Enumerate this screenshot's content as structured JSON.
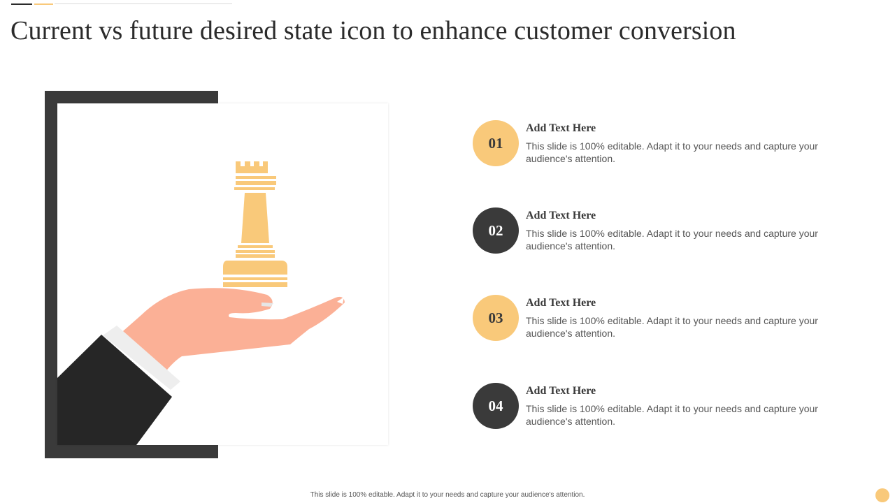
{
  "title": "Current vs future desired state icon to enhance customer conversion",
  "items": [
    {
      "number": "01",
      "heading": "Add Text Here",
      "text": "This slide is 100% editable. Adapt it to your needs and capture your audience's attention."
    },
    {
      "number": "02",
      "heading": "Add Text Here",
      "text": "This slide is 100% editable. Adapt it to your needs and capture your audience's attention."
    },
    {
      "number": "03",
      "heading": "Add Text Here",
      "text": "This slide is 100% editable. Adapt it to your needs and capture your audience's attention."
    },
    {
      "number": "04",
      "heading": "Add Text Here",
      "text": "This slide is 100% editable. Adapt it to your needs and capture your audience's attention."
    }
  ],
  "footer": "This slide is 100% editable. Adapt it to your needs and capture your audience's attention.",
  "colors": {
    "accent": "#f9c97a",
    "dark": "#3a3a3a",
    "skin": "#fbb096",
    "sleeve": "#262626",
    "cuff": "#eeeeee"
  },
  "icons": {
    "illustration": "hand-holding-chess-rook-icon"
  }
}
